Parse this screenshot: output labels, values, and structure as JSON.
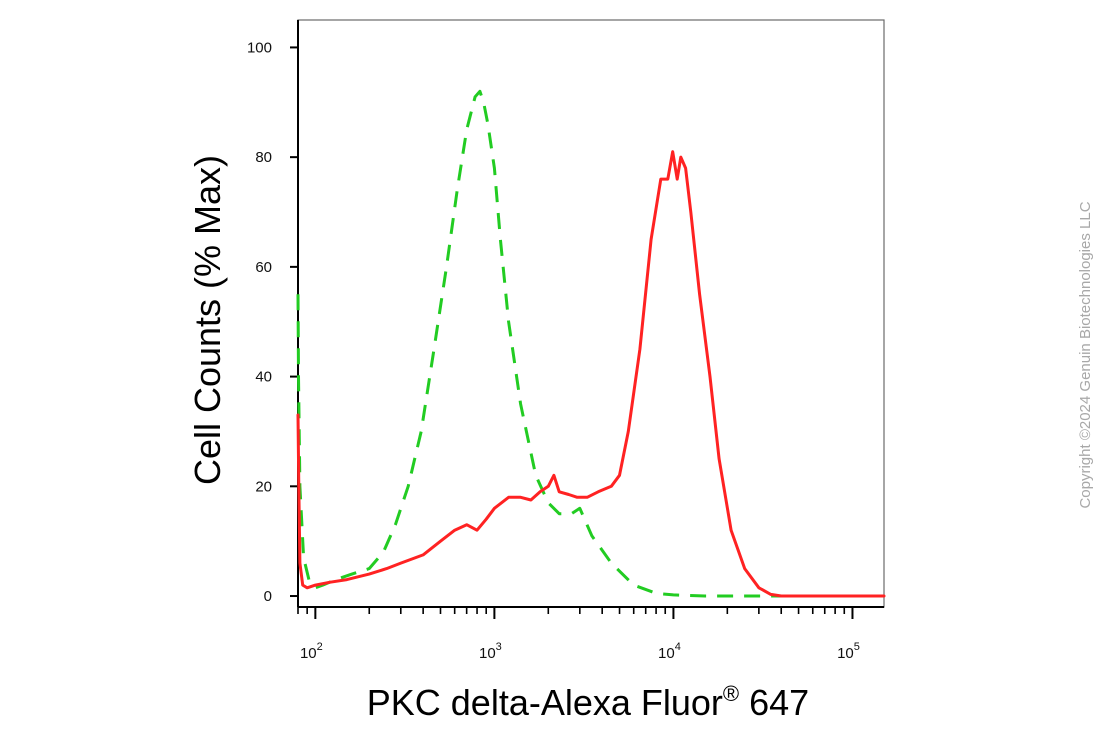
{
  "chart_data": {
    "type": "line",
    "title": "",
    "xlabel": "PKC delta-Alexa Fluor",
    "xlabel_superscript": "®",
    "xlabel_suffix": " 647",
    "ylabel": "Cell Counts (% Max)",
    "x_scale": "log",
    "xlim": [
      80,
      150000
    ],
    "ylim": [
      -2,
      105
    ],
    "y_ticks": [
      {
        "value": 0,
        "label": "0"
      },
      {
        "value": 20,
        "label": "20"
      },
      {
        "value": 40,
        "label": "40"
      },
      {
        "value": 60,
        "label": "60"
      },
      {
        "value": 80,
        "label": "80"
      },
      {
        "value": 100,
        "label": "100"
      }
    ],
    "x_ticks": [
      {
        "value": 100,
        "base": "10",
        "exp": "2"
      },
      {
        "value": 1000,
        "base": "10",
        "exp": "3"
      },
      {
        "value": 10000,
        "base": "10",
        "exp": "4"
      },
      {
        "value": 100000,
        "base": "10",
        "exp": "5"
      }
    ],
    "grid": false,
    "series": [
      {
        "color": "#22cc22",
        "dash": true,
        "x": [
          80,
          80.5,
          82,
          86,
          92,
          100,
          110,
          130,
          160,
          200,
          240,
          280,
          330,
          390,
          460,
          540,
          620,
          700,
          780,
          830,
          870,
          920,
          1000,
          1080,
          1200,
          1400,
          1700,
          2000,
          2300,
          2700,
          3000,
          3500,
          4500,
          6000,
          8000,
          10000,
          15000,
          30000,
          150000
        ],
        "y": [
          55,
          40,
          20,
          7,
          3,
          1.5,
          2,
          3,
          4,
          5,
          8,
          13,
          20,
          30,
          45,
          60,
          74,
          85,
          91,
          92,
          90,
          86,
          78,
          65,
          50,
          35,
          22,
          17,
          15,
          15,
          16,
          11,
          6,
          2,
          0.5,
          0.2,
          0,
          0,
          0
        ]
      },
      {
        "color": "#ff2222",
        "dash": false,
        "x": [
          80,
          80.8,
          82,
          85,
          90,
          100,
          120,
          150,
          200,
          250,
          300,
          400,
          500,
          600,
          700,
          800,
          900,
          1000,
          1200,
          1400,
          1600,
          1800,
          2000,
          2150,
          2300,
          2600,
          2900,
          3300,
          3800,
          4500,
          5000,
          5600,
          6500,
          7500,
          8500,
          9300,
          9900,
          10500,
          11000,
          11700,
          12500,
          14000,
          16000,
          18000,
          21000,
          25000,
          30000,
          35000,
          40000,
          150000
        ],
        "y": [
          33,
          20,
          6,
          2,
          1.5,
          2,
          2.5,
          3,
          4,
          5,
          6,
          7.5,
          10,
          12,
          13,
          12,
          14,
          16,
          18,
          18,
          17.5,
          19,
          20,
          22,
          19,
          18.5,
          18,
          18,
          19,
          20,
          22,
          30,
          45,
          65,
          76,
          76,
          81,
          76,
          80,
          78,
          70,
          55,
          40,
          25,
          12,
          5,
          1.5,
          0.3,
          0,
          0
        ]
      }
    ]
  },
  "watermark": "Copyright ©2024 Genuin Biotechnologies LLC"
}
